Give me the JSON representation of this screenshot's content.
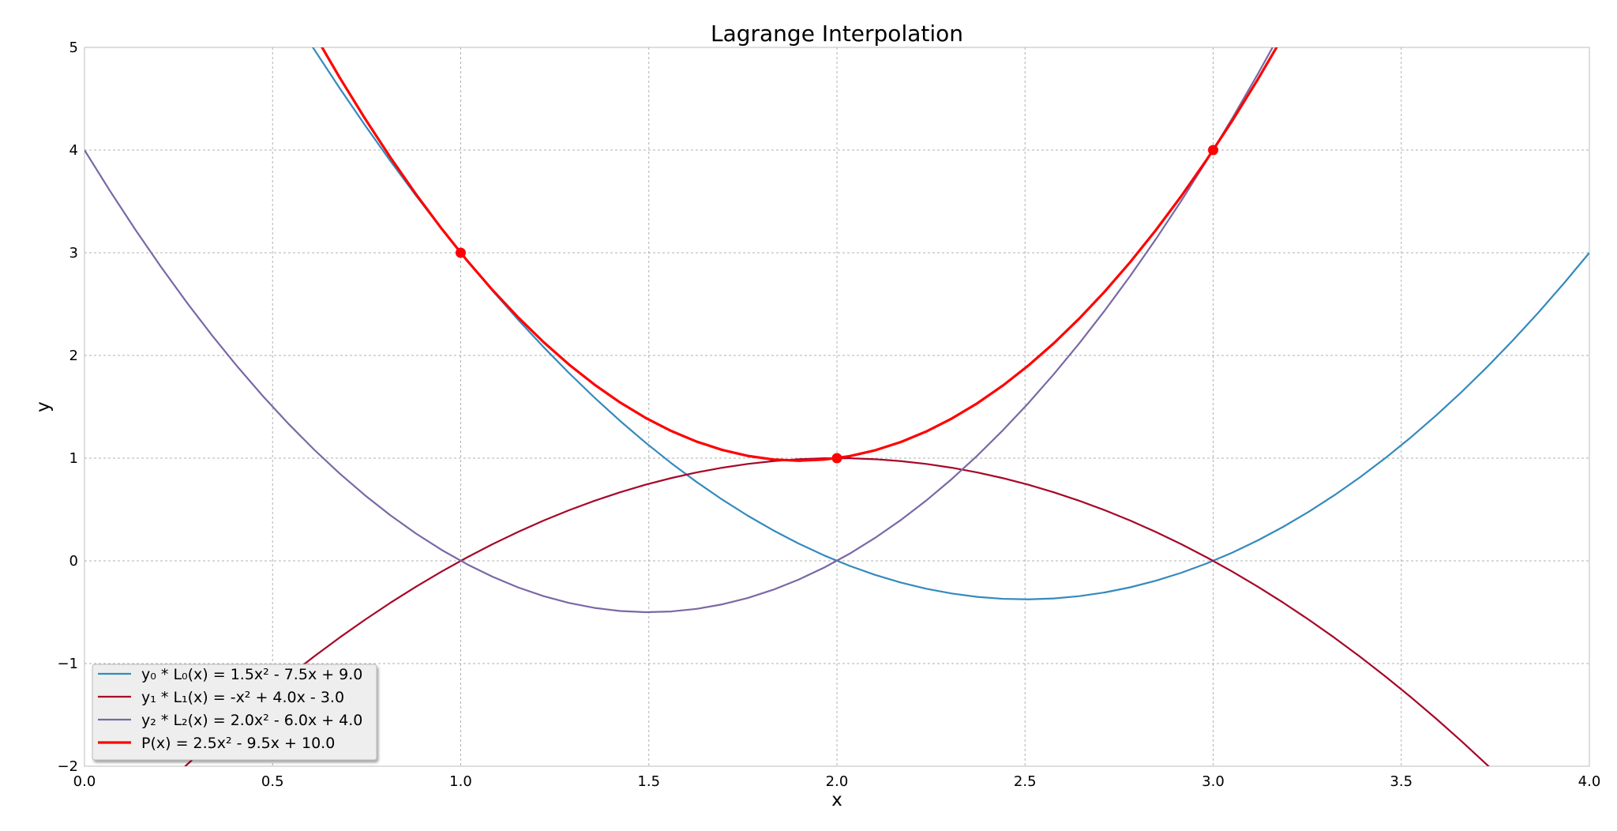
{
  "chart_data": {
    "type": "line",
    "title": "Lagrange Interpolation",
    "xlabel": "x",
    "ylabel": "y",
    "xlim": [
      0.0,
      4.0
    ],
    "ylim": [
      -2,
      5
    ],
    "grid": true,
    "legend_position": "lower-left",
    "x_ticks": [
      0.0,
      0.5,
      1.0,
      1.5,
      2.0,
      2.5,
      3.0,
      3.5,
      4.0
    ],
    "x_tick_labels": [
      "0.0",
      "0.5",
      "1.0",
      "1.5",
      "2.0",
      "2.5",
      "3.0",
      "3.5",
      "4.0"
    ],
    "y_ticks": [
      5,
      4,
      3,
      2,
      1,
      0,
      -1,
      -2
    ],
    "y_tick_labels": [
      "5",
      "4",
      "3",
      "2",
      "1",
      "0",
      "−1",
      "−2"
    ],
    "series": [
      {
        "name": "y₀ * L₀(x) = 1.5x² - 7.5x + 9.0",
        "color": "#348abd",
        "coefficients": [
          1.5,
          -7.5,
          9.0
        ]
      },
      {
        "name": "y₁ * L₁(x) = -x² + 4.0x - 3.0",
        "color": "#a60628",
        "coefficients": [
          -1.0,
          4.0,
          -3.0
        ]
      },
      {
        "name": "y₂ * L₂(x) = 2.0x² - 6.0x + 4.0",
        "color": "#7a68a6",
        "coefficients": [
          2.0,
          -6.0,
          4.0
        ]
      },
      {
        "name": "P(x) = 2.5x² - 9.5x + 10.0",
        "color": "#ff0000",
        "coefficients": [
          2.5,
          -9.5,
          10.0
        ],
        "bold": true
      }
    ],
    "points": {
      "color": "#ff0000",
      "x": [
        1.0,
        2.0,
        3.0
      ],
      "y": [
        3,
        1,
        4
      ]
    }
  }
}
